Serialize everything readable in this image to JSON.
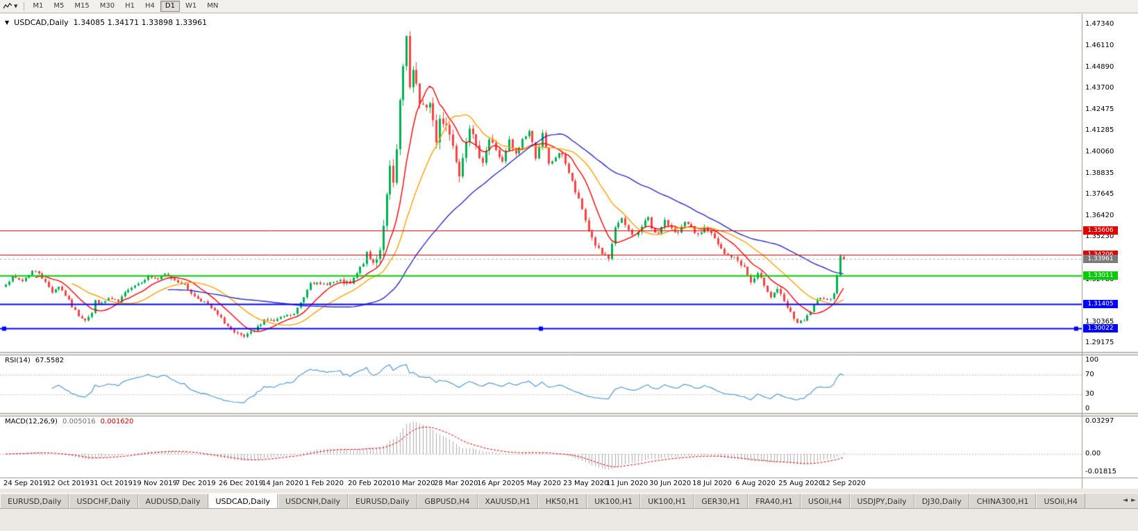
{
  "toolbar": {
    "timeframes": [
      {
        "label": "M1",
        "active": false
      },
      {
        "label": "M5",
        "active": false
      },
      {
        "label": "M15",
        "active": false
      },
      {
        "label": "M30",
        "active": false
      },
      {
        "label": "H1",
        "active": false
      },
      {
        "label": "H4",
        "active": false
      },
      {
        "label": "D1",
        "active": true
      },
      {
        "label": "W1",
        "active": false
      },
      {
        "label": "MN",
        "active": false
      }
    ]
  },
  "tabs": [
    {
      "label": "EURUSD,Daily",
      "active": false
    },
    {
      "label": "USDCHF,Daily",
      "active": false
    },
    {
      "label": "AUDUSD,Daily",
      "active": false
    },
    {
      "label": "USDCAD,Daily",
      "active": true
    },
    {
      "label": "USDCNH,Daily",
      "active": false
    },
    {
      "label": "EURUSD,Daily",
      "active": false
    },
    {
      "label": "GBPUSD,H4",
      "active": false
    },
    {
      "label": "XAUUSD,H1",
      "active": false
    },
    {
      "label": "HK50,H1",
      "active": false
    },
    {
      "label": "UK100,H1",
      "active": false
    },
    {
      "label": "UK100,H1",
      "active": false
    },
    {
      "label": "GER30,H1",
      "active": false
    },
    {
      "label": "FRA40,H1",
      "active": false
    },
    {
      "label": "USOil,H4",
      "active": false
    },
    {
      "label": "USDJPY,Daily",
      "active": false
    },
    {
      "label": "DJ30,Daily",
      "active": false
    },
    {
      "label": "CHINA300,H1",
      "active": false
    },
    {
      "label": "USOil,H4",
      "active": false
    }
  ],
  "tab_arrows": {
    "left": "◄",
    "right": "►"
  },
  "chart_data": {
    "type": "candlestick",
    "symbol": "USDCAD",
    "timeframe": "Daily",
    "title": "USDCAD,Daily",
    "ohlc_text": "1.34085 1.34171 1.33898 1.33961",
    "current_bar": {
      "open": 1.34085,
      "high": 1.34171,
      "low": 1.33898,
      "close": 1.33961
    },
    "bar_count": 254,
    "bars_per_tick": 13,
    "seed": 7,
    "ylim": [
      1.2867,
      1.4785
    ],
    "x_tick_labels": [
      "24 Sep 2019",
      "12 Oct 2019",
      "31 Oct 2019",
      "19 Nov 2019",
      "7 Dec 2019",
      "26 Dec 2019",
      "14 Jan 2020",
      "1 Feb 2020",
      "20 Feb 2020",
      "10 Mar 2020",
      "28 Mar 2020",
      "16 Apr 2020",
      "5 May 2020",
      "23 May 2020",
      "11 Jun 2020",
      "30 Jun 2020",
      "18 Jul 2020",
      "6 Aug 2020",
      "25 Aug 2020",
      "12 Sep 2020"
    ],
    "y_axis_labels": [
      "1.47340",
      "1.46110",
      "1.44890",
      "1.43700",
      "1.42475",
      "1.41285",
      "1.40060",
      "1.38835",
      "1.37645",
      "1.36420",
      "1.35230",
      "1.32780",
      "1.30365",
      "1.29175"
    ],
    "close_anchors": [
      [
        0,
        1.3258
      ],
      [
        2,
        1.3292
      ],
      [
        5,
        1.3272
      ],
      [
        8,
        1.3328
      ],
      [
        10,
        1.3318
      ],
      [
        12,
        1.3262
      ],
      [
        14,
        1.321
      ],
      [
        16,
        1.3242
      ],
      [
        18,
        1.319
      ],
      [
        20,
        1.3125
      ],
      [
        22,
        1.3075
      ],
      [
        24,
        1.3052
      ],
      [
        26,
        1.3088
      ],
      [
        27,
        1.3158
      ],
      [
        29,
        1.314
      ],
      [
        31,
        1.3172
      ],
      [
        34,
        1.315
      ],
      [
        37,
        1.3228
      ],
      [
        40,
        1.3258
      ],
      [
        43,
        1.3298
      ],
      [
        46,
        1.3282
      ],
      [
        48,
        1.3308
      ],
      [
        51,
        1.3278
      ],
      [
        54,
        1.3248
      ],
      [
        57,
        1.3182
      ],
      [
        60,
        1.3152
      ],
      [
        63,
        1.3098
      ],
      [
        66,
        1.3035
      ],
      [
        69,
        1.2972
      ],
      [
        72,
        1.2952
      ],
      [
        75,
        1.2988
      ],
      [
        78,
        1.3052
      ],
      [
        81,
        1.3042
      ],
      [
        84,
        1.3068
      ],
      [
        87,
        1.3082
      ],
      [
        90,
        1.3182
      ],
      [
        92,
        1.3268
      ],
      [
        95,
        1.3248
      ],
      [
        98,
        1.3262
      ],
      [
        101,
        1.3268
      ],
      [
        104,
        1.3252
      ],
      [
        107,
        1.3342
      ],
      [
        109,
        1.342
      ],
      [
        111,
        1.3372
      ],
      [
        113,
        1.3452
      ],
      [
        115,
        1.3748
      ],
      [
        116,
        1.3908
      ],
      [
        117,
        1.3818
      ],
      [
        118,
        1.4012
      ],
      [
        119,
        1.4272
      ],
      [
        120,
        1.4488
      ],
      [
        121,
        1.4652
      ],
      [
        122,
        1.4345
      ],
      [
        123,
        1.4475
      ],
      [
        124,
        1.4415
      ],
      [
        125,
        1.4275
      ],
      [
        127,
        1.4235
      ],
      [
        128,
        1.4305
      ],
      [
        130,
        1.4062
      ],
      [
        131,
        1.4195
      ],
      [
        133,
        1.4175
      ],
      [
        135,
        1.4042
      ],
      [
        137,
        1.3892
      ],
      [
        139,
        1.4085
      ],
      [
        140,
        1.4158
      ],
      [
        142,
        1.4022
      ],
      [
        144,
        1.3958
      ],
      [
        146,
        1.4078
      ],
      [
        148,
        1.4022
      ],
      [
        150,
        1.3942
      ],
      [
        152,
        1.4068
      ],
      [
        154,
        1.3988
      ],
      [
        156,
        1.4078
      ],
      [
        158,
        1.4125
      ],
      [
        160,
        1.3982
      ],
      [
        162,
        1.4105
      ],
      [
        164,
        1.3932
      ],
      [
        166,
        1.3978
      ],
      [
        168,
        1.3998
      ],
      [
        170,
        1.3888
      ],
      [
        172,
        1.3778
      ],
      [
        174,
        1.3678
      ],
      [
        176,
        1.3558
      ],
      [
        178,
        1.3478
      ],
      [
        180,
        1.3422
      ],
      [
        182,
        1.3388
      ],
      [
        184,
        1.3578
      ],
      [
        186,
        1.3618
      ],
      [
        188,
        1.3558
      ],
      [
        190,
        1.3528
      ],
      [
        192,
        1.3578
      ],
      [
        194,
        1.3638
      ],
      [
        195,
        1.3576
      ],
      [
        197,
        1.3538
      ],
      [
        199,
        1.3608
      ],
      [
        201,
        1.3578
      ],
      [
        203,
        1.3542
      ],
      [
        205,
        1.3602
      ],
      [
        207,
        1.3572
      ],
      [
        209,
        1.3528
      ],
      [
        211,
        1.3578
      ],
      [
        213,
        1.3538
      ],
      [
        215,
        1.3478
      ],
      [
        217,
        1.3422
      ],
      [
        219,
        1.3412
      ],
      [
        221,
        1.3388
      ],
      [
        223,
        1.3348
      ],
      [
        225,
        1.3262
      ],
      [
        227,
        1.3308
      ],
      [
        229,
        1.3252
      ],
      [
        231,
        1.3182
      ],
      [
        233,
        1.3228
      ],
      [
        235,
        1.3148
      ],
      [
        237,
        1.3088
      ],
      [
        239,
        1.3032
      ],
      [
        241,
        1.3042
      ],
      [
        243,
        1.3098
      ],
      [
        245,
        1.3158
      ],
      [
        247,
        1.3178
      ],
      [
        249,
        1.3165
      ],
      [
        250,
        1.3208
      ],
      [
        251,
        1.3312
      ],
      [
        252,
        1.3408
      ],
      [
        253,
        1.33961
      ]
    ],
    "volatility_anchors": [
      [
        0,
        0.0017
      ],
      [
        95,
        0.0017
      ],
      [
        105,
        0.0026
      ],
      [
        112,
        0.0045
      ],
      [
        118,
        0.006
      ],
      [
        126,
        0.007
      ],
      [
        136,
        0.0052
      ],
      [
        150,
        0.0034
      ],
      [
        168,
        0.0028
      ],
      [
        185,
        0.0026
      ],
      [
        205,
        0.0022
      ],
      [
        235,
        0.0022
      ],
      [
        250,
        0.0018
      ],
      [
        253,
        0.0014
      ]
    ],
    "moving_averages": [
      {
        "name": "ma-fast",
        "period": 10,
        "color": "#ff0000"
      },
      {
        "name": "ma-mid",
        "period": 21,
        "color": "#ffa200"
      },
      {
        "name": "ma-slow",
        "period": 50,
        "color": "#2b2bcc"
      }
    ],
    "hlines": [
      {
        "price": 1.35606,
        "label": "1.35606",
        "color": "#e00000",
        "width": 1,
        "selected": false
      },
      {
        "price": 1.34206,
        "label": "1.34206",
        "color": "#e00000",
        "width": 1,
        "selected": false
      },
      {
        "price": 1.33011,
        "label": "1.33011",
        "color": "#00cc00",
        "width": 2,
        "selected": false
      },
      {
        "price": 1.31405,
        "label": "1.31405",
        "color": "#0000ff",
        "width": 2,
        "selected": false
      },
      {
        "price": 1.30022,
        "label": "1.30022",
        "color": "#0000ff",
        "width": 2,
        "selected": true
      }
    ],
    "current_price": {
      "price": 1.33961,
      "label": "1.33961",
      "color": "#7a7a7a"
    },
    "rsi": {
      "label": "RSI(14)",
      "value": "67.5582",
      "period": 14,
      "scale_labels": [
        "100",
        "70",
        "30",
        "0"
      ],
      "levels": [
        70,
        30
      ],
      "color": "#4f9bd5"
    },
    "macd": {
      "label": "MACD(12,26,9)",
      "main_value": "0.005016",
      "signal_value": "0.001620",
      "fast": 12,
      "slow": 26,
      "signal": 9,
      "scale_labels": [
        "0.03297",
        "0.00",
        "-0.01815"
      ],
      "hist_color": "#ababab",
      "signal_color": "#e00000"
    },
    "colors": {
      "up": "#00b050",
      "down": "#ff4040",
      "level_dash": "#c8c8c8",
      "frame": "#9a9792"
    }
  }
}
